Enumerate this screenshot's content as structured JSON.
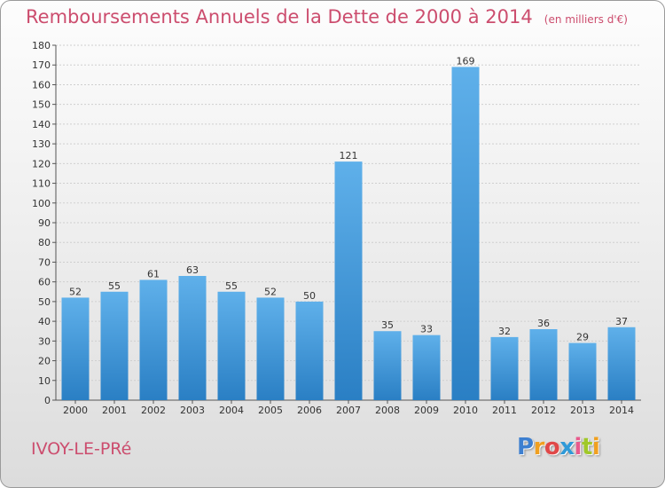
{
  "chart_data": {
    "type": "bar",
    "title": "Remboursements Annuels de la Dette de 2000 à 2014",
    "unit_label": "(en milliers d'€)",
    "categories": [
      "2000",
      "2001",
      "2002",
      "2003",
      "2004",
      "2005",
      "2006",
      "2007",
      "2008",
      "2009",
      "2010",
      "2011",
      "2012",
      "2013",
      "2014"
    ],
    "values": [
      52,
      55,
      61,
      63,
      55,
      52,
      50,
      121,
      35,
      33,
      169,
      32,
      36,
      29,
      37
    ],
    "ylim": [
      0,
      180
    ],
    "yticks": [
      0,
      10,
      20,
      30,
      40,
      50,
      60,
      70,
      80,
      90,
      100,
      110,
      120,
      130,
      140,
      150,
      160,
      170,
      180
    ],
    "grid": true,
    "bar_color": "#3a93d6",
    "xlabel": "",
    "ylabel": ""
  },
  "commune": "IVOY-LE-PRé",
  "logo": {
    "letters": [
      "P",
      "r",
      "o",
      "x",
      "i",
      "t",
      "i"
    ],
    "colors": [
      "#3d7fd0",
      "#f0a020",
      "#e04848",
      "#2f9ad8",
      "#e85a8c",
      "#a0c828",
      "#f0a020"
    ]
  },
  "colors": {
    "title": "#cc4d6e",
    "gridline": "#cfcfcf",
    "axis": "#555555"
  }
}
